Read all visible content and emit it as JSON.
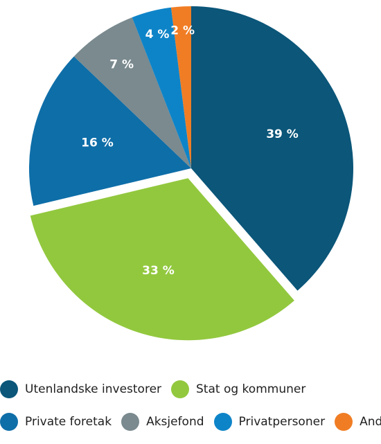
{
  "chart_data": {
    "type": "pie",
    "title": "",
    "categories": [
      "Utenlandske investorer",
      "Stat og kommuner",
      "Private foretak",
      "Aksjefond",
      "Privatpersoner",
      "Andre"
    ],
    "values": [
      39,
      33,
      16,
      7,
      4,
      2
    ],
    "value_labels": [
      "39 %",
      "33 %",
      "16 %",
      "7 %",
      "4 %",
      "2 %"
    ],
    "colors": [
      "#0b5679",
      "#92c83e",
      "#0e6ea8",
      "#7a8a8f",
      "#0e84c8",
      "#f07d24"
    ],
    "exploded": [
      "Stat og kommuner"
    ],
    "legend_position": "bottom"
  },
  "legend": {
    "rows": [
      [
        {
          "label": "Utenlandske investorer",
          "color": "#0b5679"
        },
        {
          "label": "Stat og kommuner",
          "color": "#92c83e"
        }
      ],
      [
        {
          "label": "Private foretak",
          "color": "#0e6ea8"
        },
        {
          "label": "Aksjefond",
          "color": "#7a8a8f"
        },
        {
          "label": "Privatpersoner",
          "color": "#0e84c8"
        },
        {
          "label": "Andre",
          "color": "#f07d24"
        }
      ]
    ]
  }
}
